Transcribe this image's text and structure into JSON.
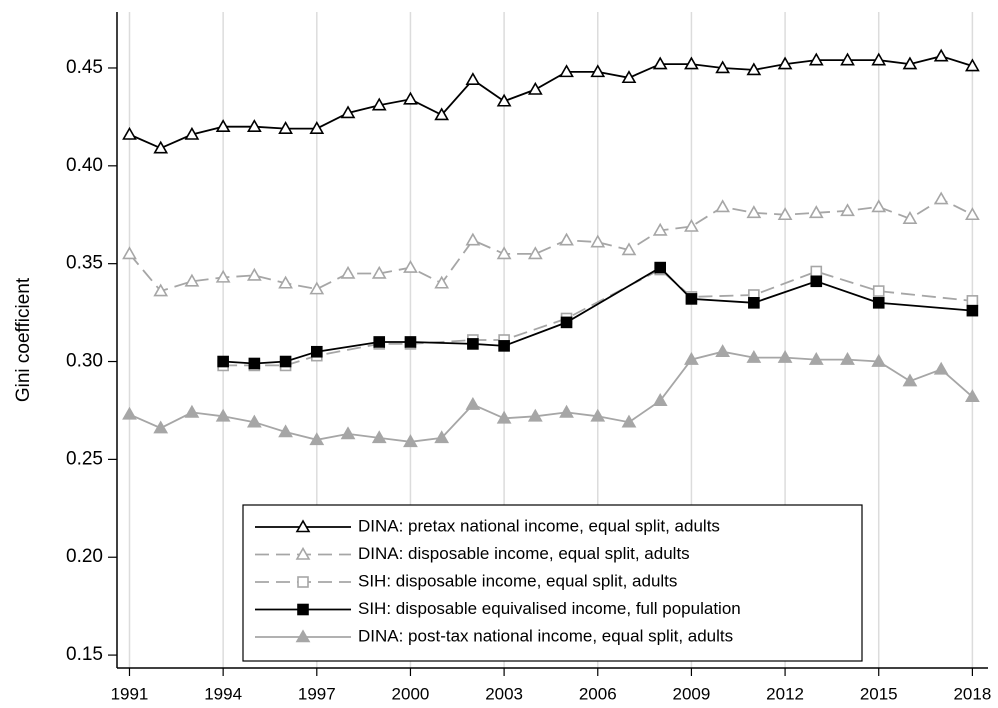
{
  "chart_data": {
    "type": "line",
    "ylabel": "Gini coefficient",
    "xlim": [
      1990.6,
      2018.5
    ],
    "ylim": [
      0.1434,
      0.4786
    ],
    "xticks": [
      1991,
      1994,
      1997,
      2000,
      2003,
      2006,
      2009,
      2012,
      2015,
      2018
    ],
    "yticks": [
      0.15,
      {
        "value": 0.2,
        "label": "0.20"
      },
      0.25,
      {
        "value": 0.3,
        "label": "0.30"
      },
      0.35,
      {
        "value": 0.4,
        "label": "0.40"
      },
      0.45
    ],
    "grid": "x",
    "legend": "bottom",
    "series": [
      {
        "name": "DINA: pretax national income, equal split, adults",
        "color": "#000000",
        "dash": "solid",
        "marker": "triangle-open",
        "x": [
          1991,
          1992,
          1993,
          1994,
          1995,
          1996,
          1997,
          1998,
          1999,
          2000,
          2001,
          2002,
          2003,
          2004,
          2005,
          2006,
          2007,
          2008,
          2009,
          2010,
          2011,
          2012,
          2013,
          2014,
          2015,
          2016,
          2017,
          2018
        ],
        "values": [
          0.416,
          0.409,
          0.416,
          0.42,
          0.42,
          0.419,
          0.419,
          0.427,
          0.431,
          0.434,
          0.426,
          0.444,
          0.433,
          0.439,
          0.448,
          0.448,
          0.445,
          0.452,
          0.452,
          0.45,
          0.449,
          0.452,
          0.454,
          0.454,
          0.454,
          0.452,
          0.456,
          0.451
        ]
      },
      {
        "name": "DINA: disposable income, equal split, adults",
        "color": "#a6a6a6",
        "dash": "dashed",
        "marker": "triangle-open",
        "x": [
          1991,
          1992,
          1993,
          1994,
          1995,
          1996,
          1997,
          1998,
          1999,
          2000,
          2001,
          2002,
          2003,
          2004,
          2005,
          2006,
          2007,
          2008,
          2009,
          2010,
          2011,
          2012,
          2013,
          2014,
          2015,
          2016,
          2017,
          2018
        ],
        "values": [
          0.355,
          0.336,
          0.341,
          0.343,
          0.344,
          0.34,
          0.337,
          0.345,
          0.345,
          0.348,
          0.34,
          0.362,
          0.355,
          0.355,
          0.362,
          0.361,
          0.357,
          0.367,
          0.369,
          0.379,
          0.376,
          0.375,
          0.376,
          0.377,
          0.379,
          0.373,
          0.383,
          0.375
        ]
      },
      {
        "name": "SIH: disposable income, equal split, adults",
        "color": "#a6a6a6",
        "dash": "dashed",
        "marker": "square-open",
        "x": [
          1994,
          1995,
          1996,
          1997,
          1999,
          2000,
          2002,
          2003,
          2005,
          2008,
          2009,
          2011,
          2013,
          2015,
          2018
        ],
        "values": [
          0.298,
          0.298,
          0.298,
          0.303,
          0.309,
          0.309,
          0.311,
          0.311,
          0.322,
          0.347,
          0.333,
          0.334,
          0.346,
          0.336,
          0.331
        ]
      },
      {
        "name": "SIH: disposable equivalised income, full population",
        "color": "#000000",
        "dash": "solid",
        "marker": "square-filled",
        "x": [
          1994,
          1995,
          1996,
          1997,
          1999,
          2000,
          2002,
          2003,
          2005,
          2008,
          2009,
          2011,
          2013,
          2015,
          2018
        ],
        "values": [
          0.3,
          0.299,
          0.3,
          0.305,
          0.31,
          0.31,
          0.309,
          0.308,
          0.32,
          0.348,
          0.332,
          0.33,
          0.341,
          0.33,
          0.326
        ]
      },
      {
        "name": "DINA: post-tax national income, equal split, adults",
        "color": "#a6a6a6",
        "dash": "solid",
        "marker": "triangle-filled",
        "x": [
          1991,
          1992,
          1993,
          1994,
          1995,
          1996,
          1997,
          1998,
          1999,
          2000,
          2001,
          2002,
          2003,
          2004,
          2005,
          2006,
          2007,
          2008,
          2009,
          2010,
          2011,
          2012,
          2013,
          2014,
          2015,
          2016,
          2017,
          2018
        ],
        "values": [
          0.273,
          0.266,
          0.274,
          0.272,
          0.269,
          0.264,
          0.26,
          0.263,
          0.261,
          0.259,
          0.261,
          0.278,
          0.271,
          0.272,
          0.274,
          0.272,
          0.269,
          0.28,
          0.301,
          0.305,
          0.302,
          0.302,
          0.301,
          0.301,
          0.3,
          0.29,
          0.296,
          0.282
        ]
      }
    ]
  }
}
